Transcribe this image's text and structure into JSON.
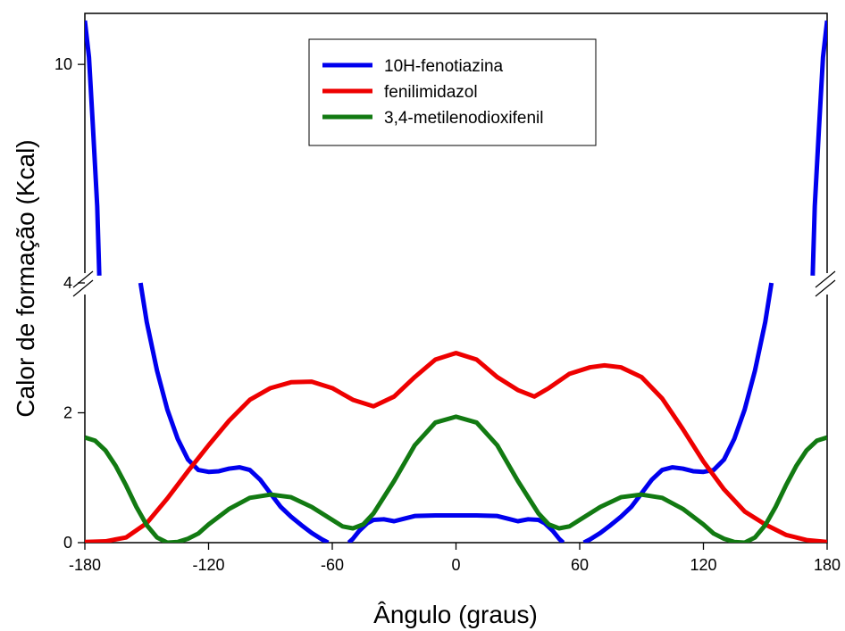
{
  "chart_data": {
    "type": "line",
    "title": "",
    "xlabel": "Ângulo (graus)",
    "ylabel": "Calor de formação (Kcal)",
    "xlim": [
      -180,
      180
    ],
    "y_axis_break": {
      "lower_range": [
        0,
        4
      ],
      "upper_range": [
        4,
        11.4
      ],
      "break_at": 4
    },
    "x_ticks": [
      "-180",
      "-120",
      "-60",
      "0",
      "60",
      "120",
      "180"
    ],
    "y_ticks": [
      "0",
      "2",
      "4",
      "10"
    ],
    "grid": false,
    "legend_position": "top-center",
    "series": [
      {
        "name": "10H-fenotiazina",
        "color": "#0000ee",
        "segments": [
          [
            [
              -180,
              11.2
            ],
            [
              -178,
              10.2
            ],
            [
              -176,
              8.2
            ],
            [
              -174,
              6.1
            ],
            [
              -173,
              4.2
            ]
          ],
          [
            [
              -153,
              4.0
            ],
            [
              -150,
              3.4
            ],
            [
              -145,
              2.65
            ],
            [
              -140,
              2.05
            ],
            [
              -135,
              1.6
            ],
            [
              -130,
              1.28
            ],
            [
              -125,
              1.12
            ],
            [
              -120,
              1.09
            ],
            [
              -115,
              1.1
            ],
            [
              -110,
              1.14
            ],
            [
              -105,
              1.16
            ],
            [
              -100,
              1.12
            ],
            [
              -95,
              0.97
            ],
            [
              -90,
              0.76
            ],
            [
              -85,
              0.55
            ],
            [
              -80,
              0.4
            ],
            [
              -75,
              0.27
            ],
            [
              -70,
              0.15
            ],
            [
              -65,
              0.05
            ],
            [
              -62,
              0.0
            ]
          ],
          [
            [
              -52,
              0.0
            ],
            [
              -50,
              0.06
            ],
            [
              -47,
              0.18
            ],
            [
              -43,
              0.3
            ],
            [
              -40,
              0.35
            ],
            [
              -35,
              0.36
            ],
            [
              -30,
              0.33
            ],
            [
              -25,
              0.37
            ],
            [
              -20,
              0.41
            ],
            [
              -10,
              0.42
            ],
            [
              0,
              0.42
            ],
            [
              10,
              0.42
            ],
            [
              20,
              0.41
            ],
            [
              25,
              0.37
            ],
            [
              30,
              0.33
            ],
            [
              35,
              0.36
            ],
            [
              40,
              0.35
            ],
            [
              43,
              0.3
            ],
            [
              47,
              0.18
            ],
            [
              50,
              0.06
            ],
            [
              52,
              0.0
            ]
          ],
          [
            [
              62,
              0.0
            ],
            [
              65,
              0.05
            ],
            [
              70,
              0.15
            ],
            [
              75,
              0.27
            ],
            [
              80,
              0.4
            ],
            [
              85,
              0.55
            ],
            [
              90,
              0.76
            ],
            [
              95,
              0.97
            ],
            [
              100,
              1.12
            ],
            [
              105,
              1.16
            ],
            [
              110,
              1.14
            ],
            [
              115,
              1.1
            ],
            [
              120,
              1.09
            ],
            [
              125,
              1.12
            ],
            [
              130,
              1.28
            ],
            [
              135,
              1.6
            ],
            [
              140,
              2.05
            ],
            [
              145,
              2.65
            ],
            [
              150,
              3.4
            ],
            [
              153,
              4.0
            ]
          ],
          [
            [
              173,
              4.2
            ],
            [
              174,
              6.1
            ],
            [
              176,
              8.2
            ],
            [
              178,
              10.2
            ],
            [
              180,
              11.2
            ]
          ]
        ]
      },
      {
        "name": "fenilimidazol",
        "color": "#ee0000",
        "segments": [
          [
            [
              -180,
              0.01
            ],
            [
              -170,
              0.02
            ],
            [
              -160,
              0.08
            ],
            [
              -150,
              0.3
            ],
            [
              -140,
              0.68
            ],
            [
              -130,
              1.1
            ],
            [
              -120,
              1.5
            ],
            [
              -110,
              1.88
            ],
            [
              -100,
              2.2
            ],
            [
              -90,
              2.38
            ],
            [
              -80,
              2.47
            ],
            [
              -70,
              2.48
            ],
            [
              -60,
              2.38
            ],
            [
              -50,
              2.2
            ],
            [
              -40,
              2.1
            ],
            [
              -30,
              2.25
            ],
            [
              -20,
              2.55
            ],
            [
              -10,
              2.82
            ],
            [
              0,
              2.92
            ],
            [
              10,
              2.82
            ],
            [
              20,
              2.55
            ],
            [
              30,
              2.35
            ],
            [
              38,
              2.25
            ],
            [
              45,
              2.38
            ],
            [
              55,
              2.6
            ],
            [
              65,
              2.7
            ],
            [
              72,
              2.73
            ],
            [
              80,
              2.7
            ],
            [
              90,
              2.55
            ],
            [
              100,
              2.22
            ],
            [
              110,
              1.75
            ],
            [
              120,
              1.25
            ],
            [
              130,
              0.82
            ],
            [
              140,
              0.48
            ],
            [
              150,
              0.28
            ],
            [
              160,
              0.12
            ],
            [
              170,
              0.04
            ],
            [
              180,
              0.01
            ]
          ]
        ]
      },
      {
        "name": "3,4-metilenodioxifenil",
        "color": "#127a12",
        "segments": [
          [
            [
              -180,
              1.62
            ],
            [
              -175,
              1.57
            ],
            [
              -170,
              1.42
            ],
            [
              -165,
              1.18
            ],
            [
              -160,
              0.88
            ],
            [
              -155,
              0.55
            ],
            [
              -150,
              0.27
            ],
            [
              -145,
              0.08
            ],
            [
              -140,
              0.0
            ],
            [
              -135,
              0.01
            ],
            [
              -130,
              0.06
            ],
            [
              -125,
              0.14
            ],
            [
              -120,
              0.28
            ],
            [
              -110,
              0.52
            ],
            [
              -100,
              0.69
            ],
            [
              -90,
              0.74
            ],
            [
              -80,
              0.7
            ],
            [
              -70,
              0.55
            ],
            [
              -60,
              0.35
            ],
            [
              -55,
              0.25
            ],
            [
              -50,
              0.22
            ],
            [
              -45,
              0.28
            ],
            [
              -40,
              0.45
            ],
            [
              -30,
              0.95
            ],
            [
              -20,
              1.5
            ],
            [
              -10,
              1.85
            ],
            [
              0,
              1.94
            ],
            [
              10,
              1.85
            ],
            [
              20,
              1.5
            ],
            [
              30,
              0.95
            ],
            [
              40,
              0.45
            ],
            [
              45,
              0.28
            ],
            [
              50,
              0.22
            ],
            [
              55,
              0.25
            ],
            [
              60,
              0.35
            ],
            [
              70,
              0.55
            ],
            [
              80,
              0.7
            ],
            [
              90,
              0.74
            ],
            [
              100,
              0.69
            ],
            [
              110,
              0.52
            ],
            [
              120,
              0.28
            ],
            [
              125,
              0.14
            ],
            [
              130,
              0.06
            ],
            [
              135,
              0.01
            ],
            [
              140,
              0.0
            ],
            [
              145,
              0.08
            ],
            [
              150,
              0.27
            ],
            [
              155,
              0.55
            ],
            [
              160,
              0.88
            ],
            [
              165,
              1.18
            ],
            [
              170,
              1.42
            ],
            [
              175,
              1.57
            ],
            [
              180,
              1.62
            ]
          ]
        ]
      }
    ]
  }
}
